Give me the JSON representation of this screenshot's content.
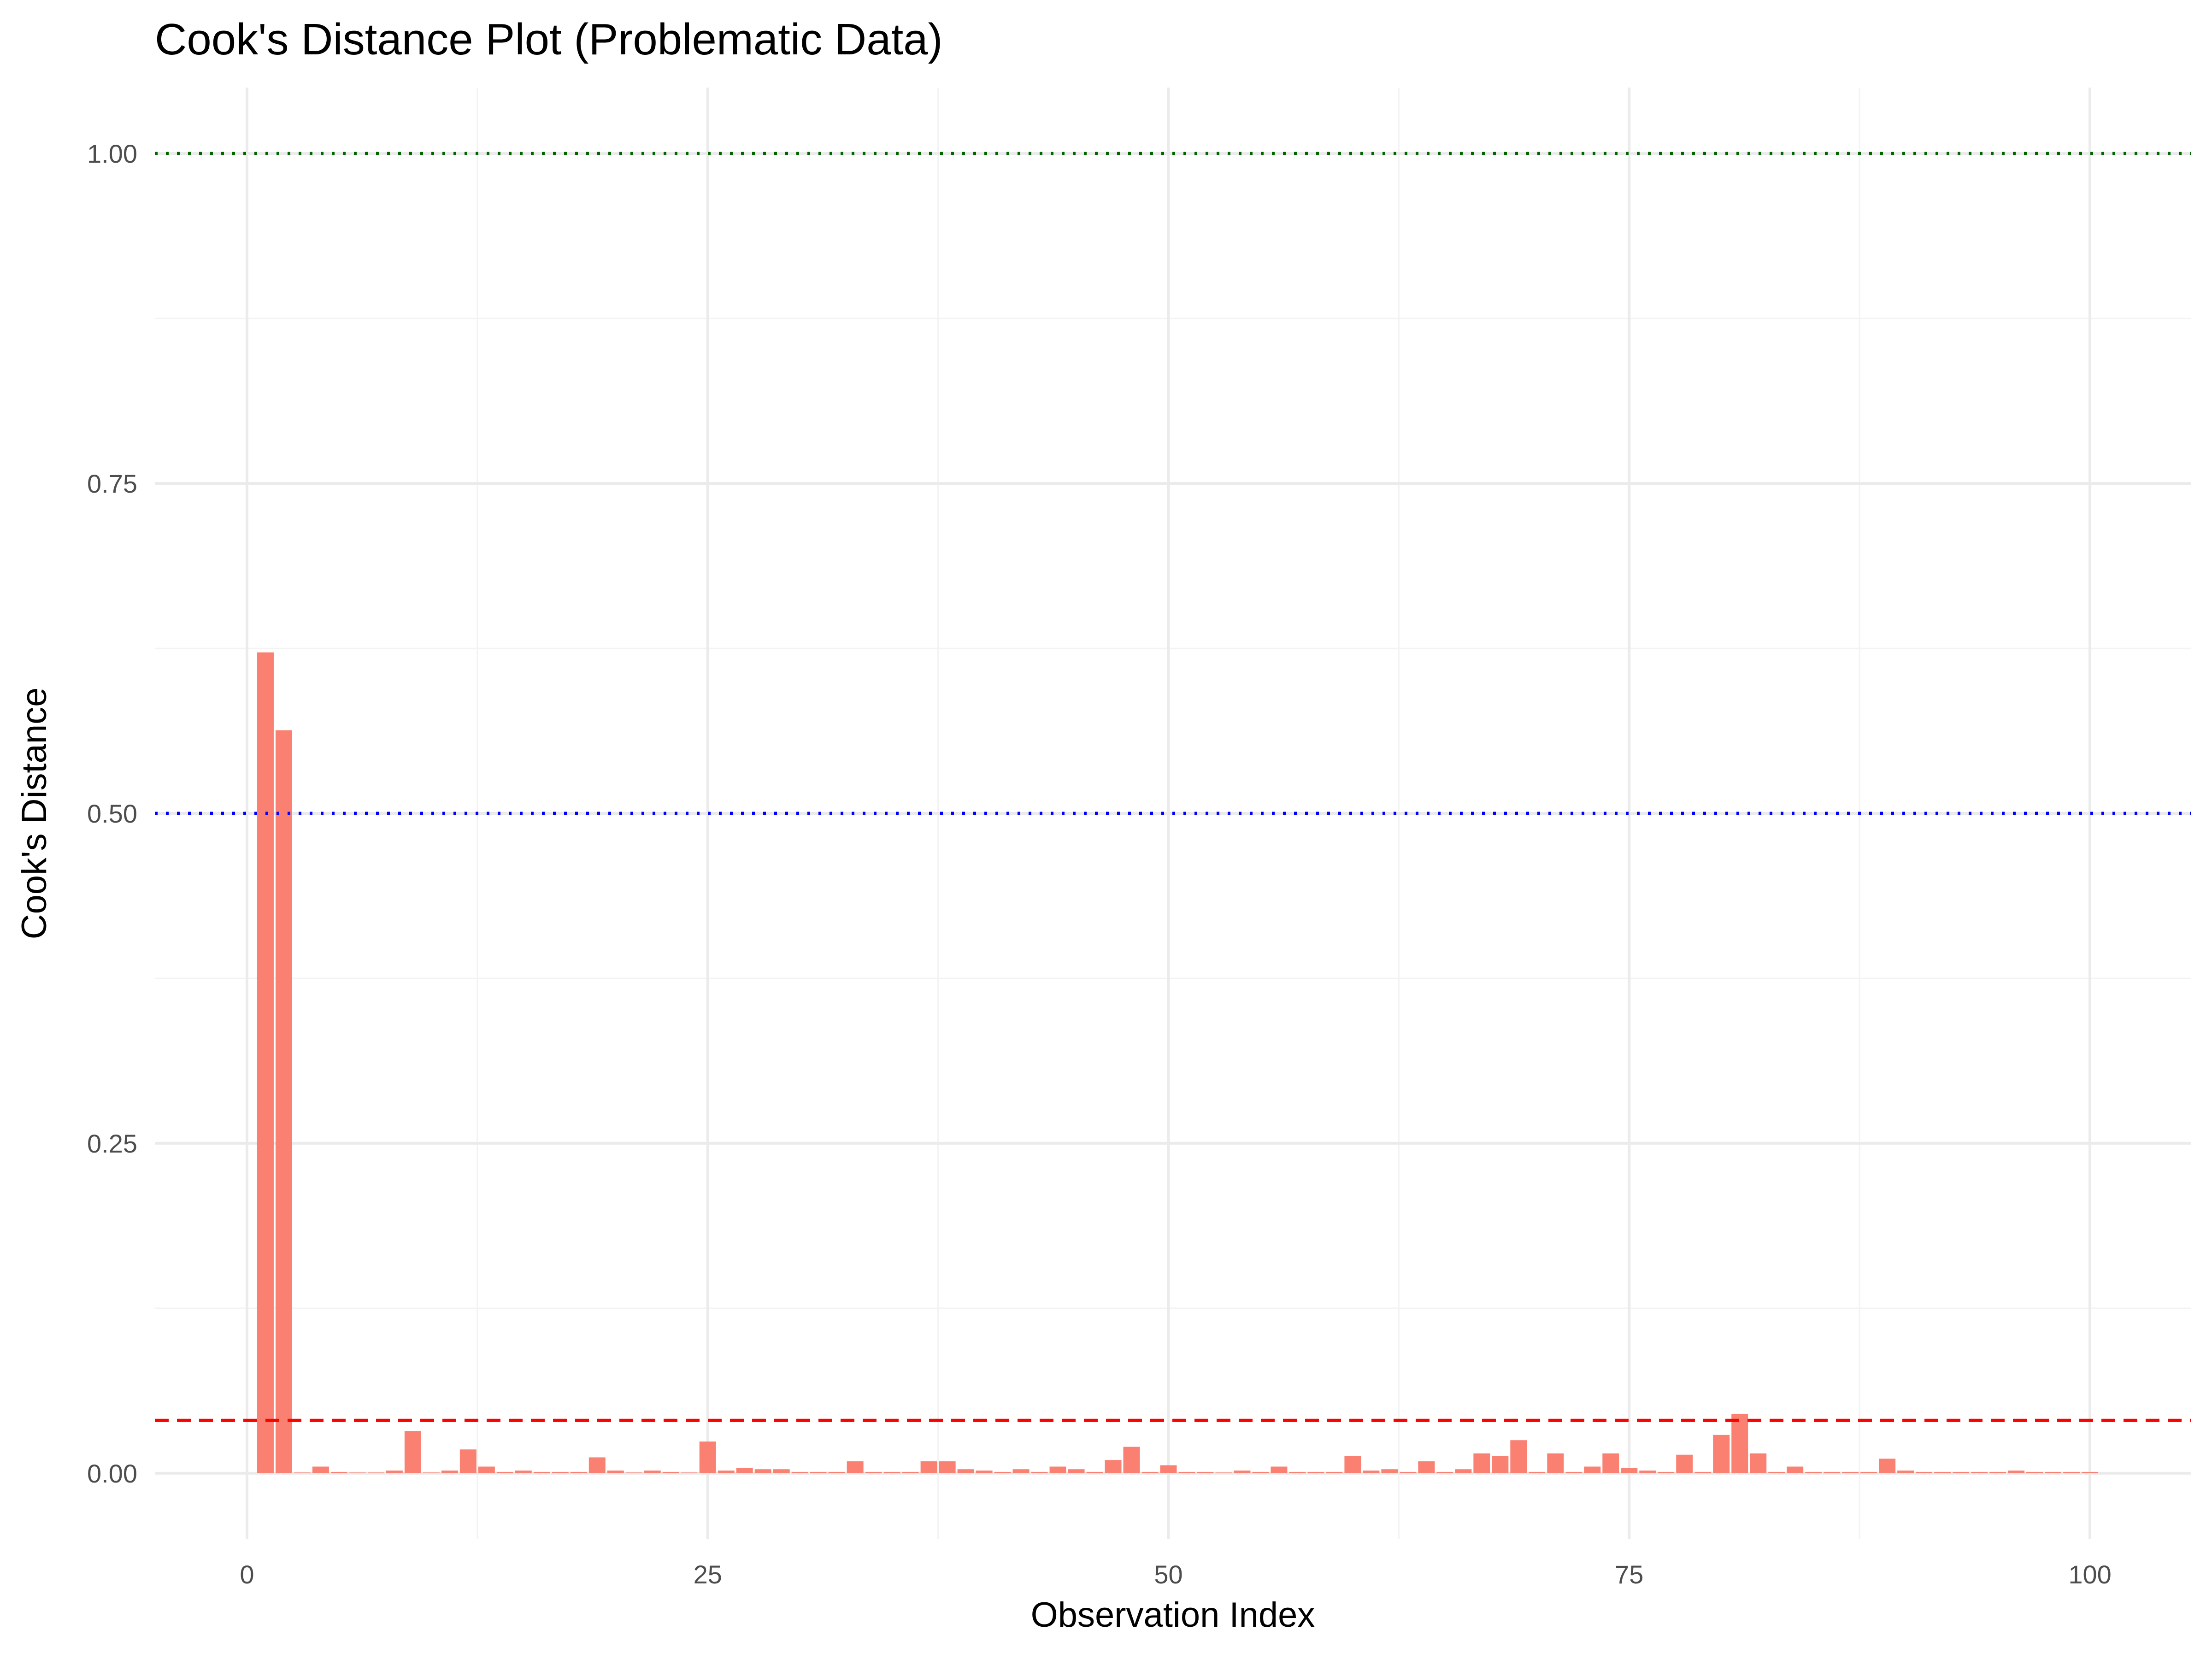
{
  "chart_data": {
    "type": "bar",
    "title": "Cook's Distance Plot (Problematic Data)",
    "xlabel": "Observation Index",
    "ylabel": "Cook's Distance",
    "xlim": [
      -5,
      105.5
    ],
    "ylim": [
      -0.05,
      1.05
    ],
    "x_ticks": [
      0,
      25,
      50,
      75,
      100
    ],
    "y_ticks": [
      0.0,
      0.25,
      0.5,
      0.75,
      1.0
    ],
    "x_tick_labels": [
      "0",
      "25",
      "50",
      "75",
      "100"
    ],
    "y_tick_labels": [
      "0.00",
      "0.25",
      "0.50",
      "0.75",
      "1.00"
    ],
    "grid": true,
    "bar_color": "#fa8072",
    "x": [
      1,
      2,
      3,
      4,
      5,
      6,
      7,
      8,
      9,
      10,
      11,
      12,
      13,
      14,
      15,
      16,
      17,
      18,
      19,
      20,
      21,
      22,
      23,
      24,
      25,
      26,
      27,
      28,
      29,
      30,
      31,
      32,
      33,
      34,
      35,
      36,
      37,
      38,
      39,
      40,
      41,
      42,
      43,
      44,
      45,
      46,
      47,
      48,
      49,
      50,
      51,
      52,
      53,
      54,
      55,
      56,
      57,
      58,
      59,
      60,
      61,
      62,
      63,
      64,
      65,
      66,
      67,
      68,
      69,
      70,
      71,
      72,
      73,
      74,
      75,
      76,
      77,
      78,
      79,
      80,
      81,
      82,
      83,
      84,
      85,
      86,
      87,
      88,
      89,
      90,
      91,
      92,
      93,
      94,
      95,
      96,
      97,
      98,
      99,
      100
    ],
    "values": [
      0.622,
      0.563,
      0.0005,
      0.005,
      0.001,
      0.0005,
      0.0005,
      0.002,
      0.032,
      0.0005,
      0.002,
      0.018,
      0.005,
      0.001,
      0.002,
      0.001,
      0.001,
      0.001,
      0.012,
      0.002,
      0.0005,
      0.002,
      0.001,
      0.0005,
      0.024,
      0.002,
      0.004,
      0.003,
      0.003,
      0.001,
      0.001,
      0.001,
      0.009,
      0.001,
      0.001,
      0.001,
      0.009,
      0.009,
      0.003,
      0.002,
      0.001,
      0.003,
      0.001,
      0.005,
      0.003,
      0.001,
      0.01,
      0.02,
      0.001,
      0.006,
      0.001,
      0.001,
      0.0005,
      0.002,
      0.001,
      0.005,
      0.001,
      0.001,
      0.001,
      0.013,
      0.002,
      0.003,
      0.001,
      0.009,
      0.001,
      0.003,
      0.015,
      0.013,
      0.025,
      0.001,
      0.015,
      0.001,
      0.005,
      0.015,
      0.004,
      0.002,
      0.001,
      0.014,
      0.001,
      0.029,
      0.045,
      0.015,
      0.001,
      0.005,
      0.001,
      0.001,
      0.001,
      0.001,
      0.011,
      0.002,
      0.001,
      0.001,
      0.001,
      0.001,
      0.001,
      0.002,
      0.001,
      0.001,
      0.001,
      0.001
    ],
    "reference_lines": [
      {
        "y": 1.0,
        "color": "#006400",
        "style": "dotted"
      },
      {
        "y": 0.5,
        "color": "#0000ff",
        "style": "dotted"
      },
      {
        "y": 0.04,
        "color": "#ff0000",
        "style": "dashed"
      }
    ]
  }
}
